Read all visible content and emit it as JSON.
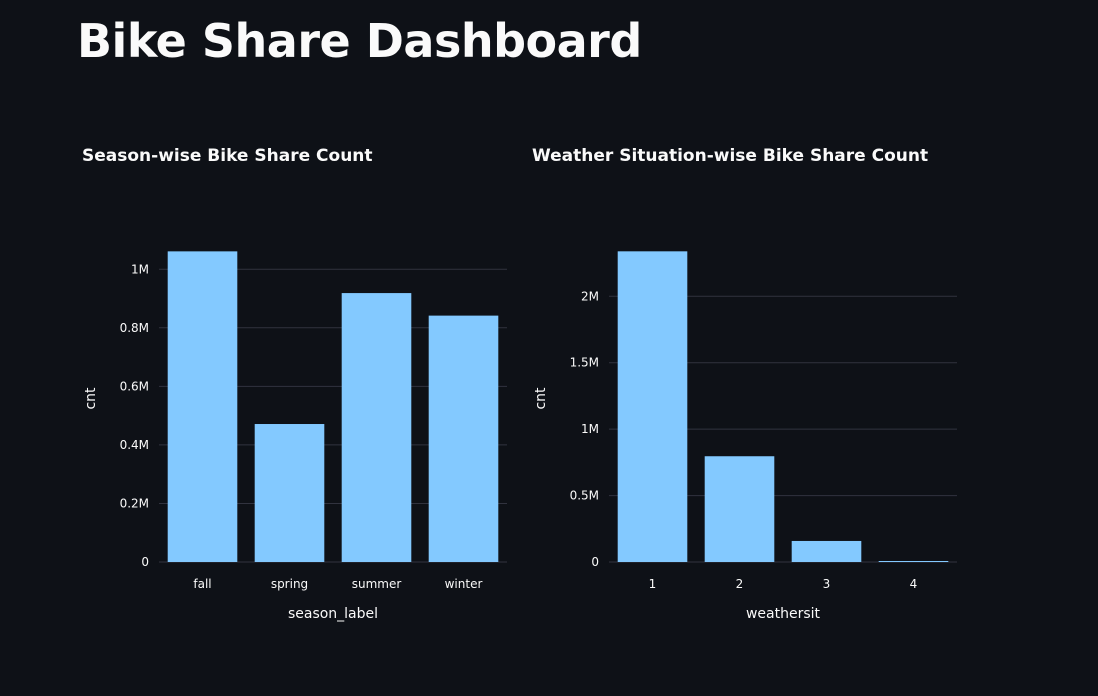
{
  "page": {
    "title": "Bike Share Dashboard"
  },
  "chart_data": [
    {
      "type": "bar",
      "title": "Season-wise Bike Share Count",
      "categories": [
        "fall",
        "spring",
        "summer",
        "winter"
      ],
      "values": [
        1061129,
        471348,
        918589,
        841613
      ],
      "xlabel": "season_label",
      "ylabel": "cnt",
      "ylim": [
        0,
        1117000
      ],
      "yticks": [
        0,
        200000,
        400000,
        600000,
        800000,
        1000000
      ],
      "ytick_labels": [
        "0",
        "0.2M",
        "0.4M",
        "0.6M",
        "0.8M",
        "1M"
      ],
      "grid": true,
      "bar_color": "#83c9ff"
    },
    {
      "type": "bar",
      "title": "Weather Situation-wise Bike Share Count",
      "categories": [
        "1",
        "2",
        "3",
        "4"
      ],
      "values": [
        2338173,
        795952,
        158331,
        223
      ],
      "xlabel": "weathersit",
      "ylabel": "cnt",
      "ylim": [
        0,
        2461000
      ],
      "yticks": [
        0,
        500000,
        1000000,
        1500000,
        2000000
      ],
      "ytick_labels": [
        "0",
        "0.5M",
        "1M",
        "1.5M",
        "2M"
      ],
      "grid": true,
      "bar_color": "#83c9ff"
    }
  ],
  "colors": {
    "background": "#0e1117",
    "text": "#fafafa",
    "gridline": "#31333f",
    "bar": "#83c9ff"
  }
}
